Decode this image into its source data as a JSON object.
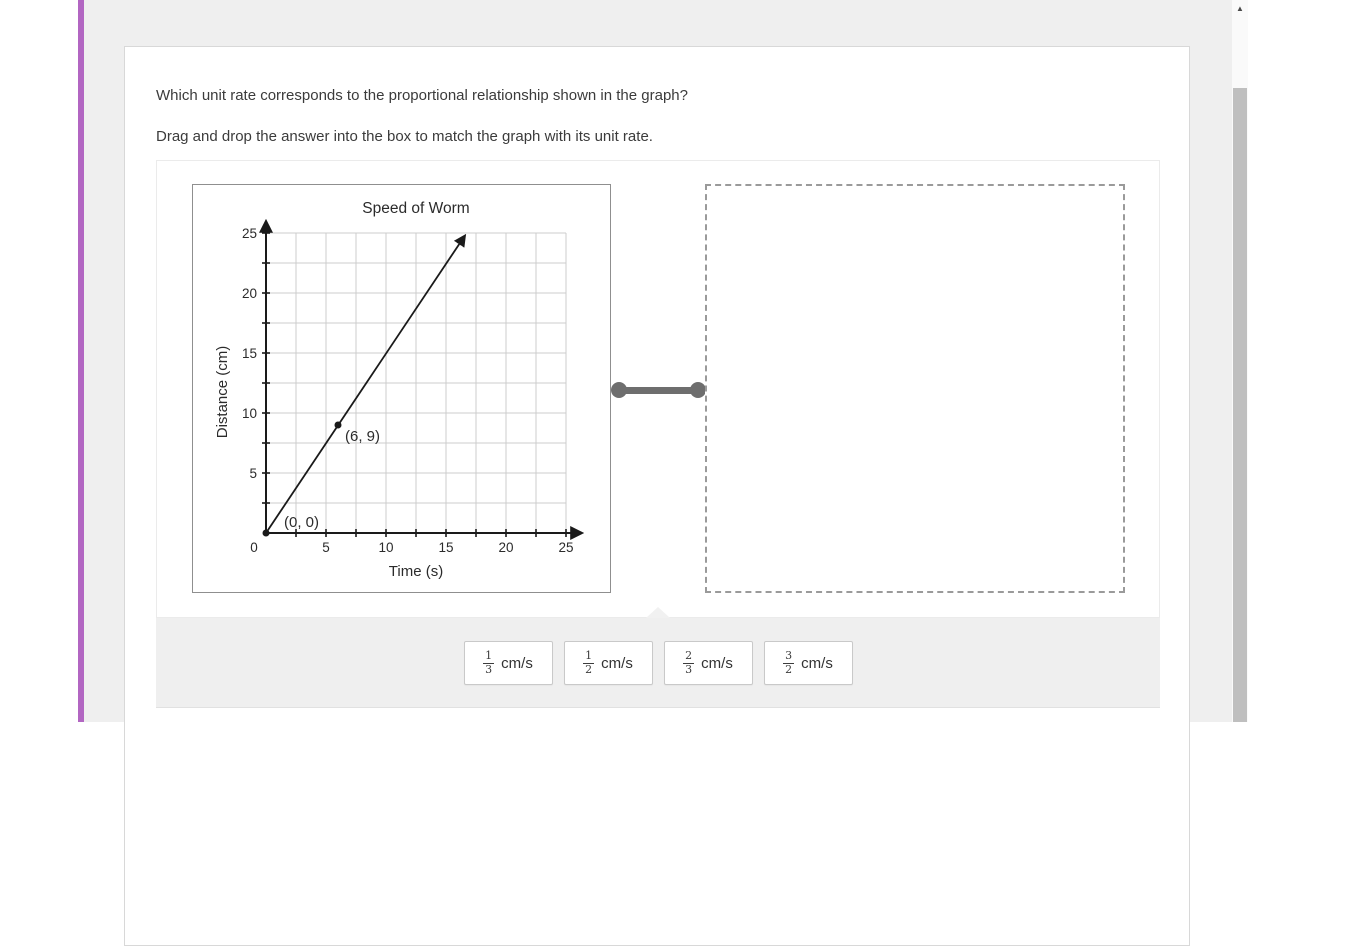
{
  "question": {
    "line1": "Which unit rate corresponds to the proportional relationship shown in the graph?",
    "line2": "Drag and drop the answer into the box to match the graph with its unit rate."
  },
  "chart_data": {
    "type": "line",
    "title": "Speed of Worm",
    "xlabel": "Time (s)",
    "ylabel": "Distance (cm)",
    "xlim": [
      0,
      25
    ],
    "ylim": [
      0,
      25
    ],
    "grid_step": 2.5,
    "label_step": 5,
    "x_tick_labels": [
      "0",
      "5",
      "10",
      "15",
      "20",
      "25"
    ],
    "y_tick_labels": [
      "5",
      "10",
      "15",
      "20",
      "25"
    ],
    "grid": true,
    "line_start": [
      0,
      0
    ],
    "line_end": [
      16.5,
      24.67
    ],
    "points": [
      {
        "x": 0,
        "y": 0,
        "label": "(0, 0)",
        "label_offset": [
          18,
          -6
        ]
      },
      {
        "x": 6,
        "y": 9,
        "label": "(6, 9)",
        "label_offset": [
          7,
          16
        ]
      }
    ]
  },
  "drop_zone": {
    "content": ""
  },
  "options": [
    {
      "numerator": "1",
      "denominator": "3",
      "unit": "cm/s"
    },
    {
      "numerator": "1",
      "denominator": "2",
      "unit": "cm/s"
    },
    {
      "numerator": "2",
      "denominator": "3",
      "unit": "cm/s"
    },
    {
      "numerator": "3",
      "denominator": "2",
      "unit": "cm/s"
    }
  ],
  "scrollbar": {
    "up_arrow": "▲"
  },
  "colors": {
    "accent_bar": "#b266c2",
    "page_bg": "#efefef",
    "tray_bg": "#efefef",
    "connector": "#6e6e6e",
    "grid_line": "#cccccc",
    "axis": "#1a1a1a"
  }
}
